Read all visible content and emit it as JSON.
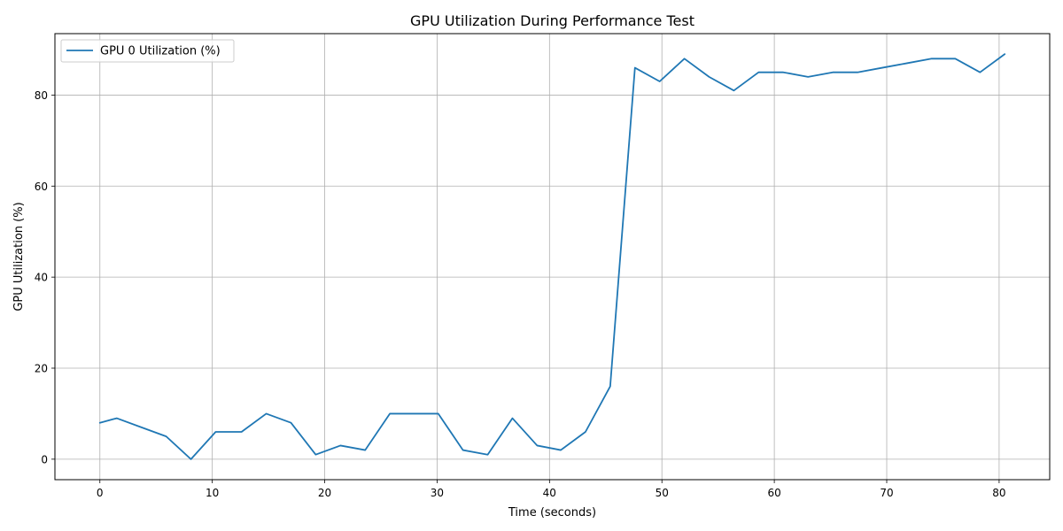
{
  "chart_data": {
    "type": "line",
    "title": "GPU Utilization During Performance Test",
    "xlabel": "Time (seconds)",
    "ylabel": "GPU Utilization (%)",
    "xlim": [
      -4,
      84.5
    ],
    "ylim": [
      -4.5,
      93.5
    ],
    "xticks": [
      0,
      10,
      20,
      30,
      40,
      50,
      60,
      70,
      80
    ],
    "yticks": [
      0,
      20,
      40,
      60,
      80
    ],
    "grid": true,
    "legend_position": "top-left",
    "colors": {
      "series": "#1f77b4",
      "grid": "#b0b0b0"
    },
    "series": [
      {
        "name": "GPU 0 Utilization (%)",
        "x": [
          0,
          1.5,
          3.7,
          5.9,
          8.1,
          10.3,
          12.6,
          14.8,
          17.0,
          19.2,
          21.4,
          23.6,
          25.8,
          28.0,
          30.1,
          32.3,
          34.5,
          36.7,
          38.9,
          41.0,
          43.2,
          45.4,
          47.6,
          49.8,
          52.0,
          54.2,
          56.4,
          58.6,
          60.8,
          63.0,
          65.2,
          67.4,
          69.6,
          71.8,
          74.0,
          76.1,
          78.3,
          80.5
        ],
        "y": [
          8,
          9,
          7,
          5,
          0,
          6,
          6,
          10,
          8,
          1,
          3,
          2,
          10,
          10,
          10,
          2,
          1,
          9,
          3,
          2,
          6,
          16,
          86,
          83,
          88,
          84,
          81,
          85,
          85,
          84,
          85,
          85,
          86,
          87,
          88,
          88,
          85,
          89
        ]
      }
    ]
  }
}
